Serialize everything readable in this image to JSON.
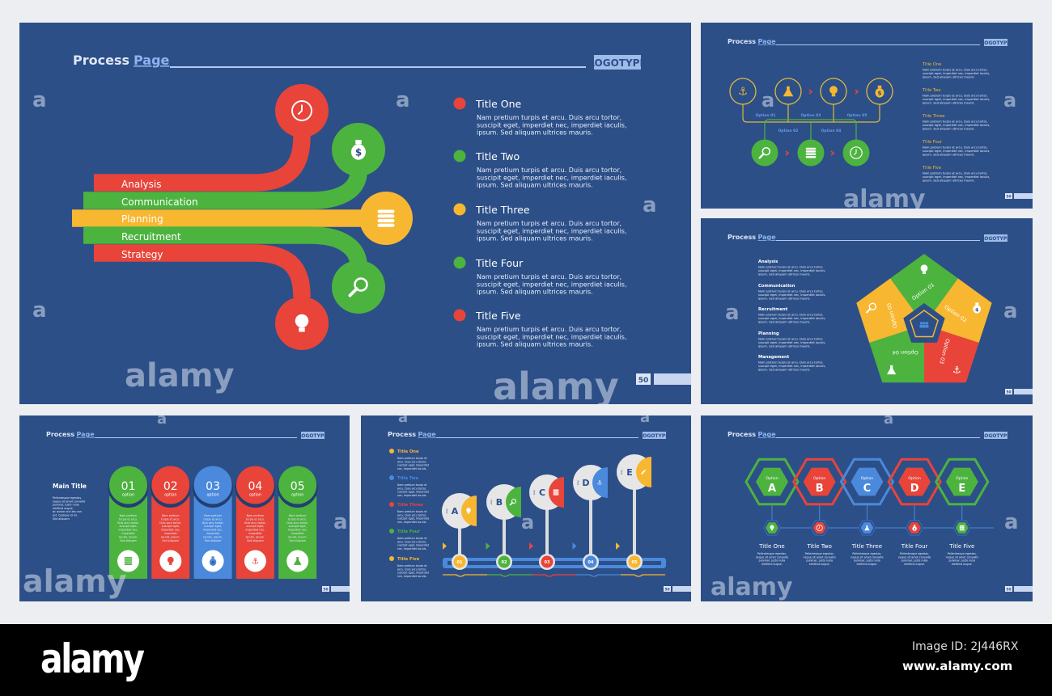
{
  "header": {
    "process": "Process",
    "page": "Page",
    "logotype": "LOGOTYPE",
    "page_number": "50"
  },
  "watermark": "alamy",
  "colors": {
    "background": "#2c4f88",
    "red": "#e8443a",
    "green": "#4cb33f",
    "yellow": "#f7b731",
    "blue": "#4a89dc",
    "light": "#e6e6e6"
  },
  "body_lines": [
    "Nam pretium turpis et arcu. Duis arcu tortor,",
    "suscipit eget, imperdiet nec, imperdiet iaculis,",
    "ipsum. Sed aliquam ultrices mauris."
  ],
  "slide1": {
    "branches": [
      {
        "label": "Analysis",
        "color": "#e8443a",
        "icon": "clock-icon"
      },
      {
        "label": "Communication",
        "color": "#4cb33f",
        "icon": "money-bag-icon"
      },
      {
        "label": "Planning",
        "color": "#f7b731",
        "icon": "coins-icon"
      },
      {
        "label": "Recruitment",
        "color": "#4cb33f",
        "icon": "search-icon"
      },
      {
        "label": "Strategy",
        "color": "#e8443a",
        "icon": "lightbulb-icon"
      }
    ],
    "items": [
      {
        "title": "Title One",
        "color": "#e8443a"
      },
      {
        "title": "Title Two",
        "color": "#4cb33f"
      },
      {
        "title": "Title Three",
        "color": "#f7b731"
      },
      {
        "title": "Title Four",
        "color": "#4cb33f"
      },
      {
        "title": "Title Five",
        "color": "#e8443a"
      }
    ]
  },
  "slide2": {
    "top_icons": [
      "anchor-icon",
      "flask-icon",
      "lightbulb-icon",
      "money-bag-icon"
    ],
    "bottom_icons": [
      "search-icon",
      "coins-icon",
      "clock-icon"
    ],
    "options": [
      "Option 01",
      "Option 02",
      "Option 03",
      "Option 04",
      "Option 05"
    ],
    "items": [
      "Title One",
      "Title Two",
      "Title Three",
      "Title Four",
      "Title Five"
    ]
  },
  "slide3": {
    "items": [
      "Analysis",
      "Communication",
      "Recruitment",
      "Planning",
      "Management"
    ],
    "segments": [
      {
        "label": "Option 01",
        "color": "#4cb33f",
        "icon": "lightbulb-icon"
      },
      {
        "label": "Option 02",
        "color": "#f7b731",
        "icon": "money-bag-icon"
      },
      {
        "label": "Option 03",
        "color": "#e8443a",
        "icon": "anchor-icon"
      },
      {
        "label": "Option 04",
        "color": "#4cb33f",
        "icon": "flask-icon"
      },
      {
        "label": "Option 05",
        "color": "#f7b731",
        "icon": "search-icon"
      }
    ],
    "center_icon": "people-icon"
  },
  "slide4": {
    "main_title": "Main Title",
    "main_text": [
      "Pellentesque egestas,",
      "neque sit amet convallis",
      "pulvinar, justo nulla",
      "eleifend augue,",
      "ac auctor orci leo non",
      "est. Quisque id mi.",
      "Sed aliquam."
    ],
    "option_label": "option",
    "column_text": [
      "Nam pretium",
      "turpis et arcu.",
      "Duis arcu tortor,",
      "suscipit eget,",
      "imperdiet nec,",
      "imperdiet",
      "iaculis, ipsum.",
      "Sed aliquam"
    ],
    "columns": [
      {
        "number": "01",
        "color": "#4cb33f",
        "icon": "coins-icon"
      },
      {
        "number": "02",
        "color": "#e8443a",
        "icon": "lightbulb-icon"
      },
      {
        "number": "03",
        "color": "#4a89dc",
        "icon": "money-bag-icon"
      },
      {
        "number": "04",
        "color": "#e8443a",
        "icon": "anchor-icon"
      },
      {
        "number": "05",
        "color": "#4cb33f",
        "icon": "flask-icon"
      }
    ]
  },
  "slide5": {
    "item_text": [
      "Nam pretium turpis et",
      "arcu. Duis arcu tortor,",
      "suscipit eget, imperdiet",
      "nec, imperdiet iaculis."
    ],
    "items": [
      {
        "title": "Title One",
        "color": "#f7b731"
      },
      {
        "title": "Title Two",
        "color": "#4a89dc"
      },
      {
        "title": "Title Three",
        "color": "#e8443a"
      },
      {
        "title": "Title Four",
        "color": "#4cb33f"
      },
      {
        "title": "Title Five",
        "color": "#f7b731"
      }
    ],
    "step_label": "step",
    "steps": [
      {
        "letter": "A",
        "number": "01",
        "color": "#f7b731",
        "icon": "lightbulb-icon"
      },
      {
        "letter": "B",
        "number": "02",
        "color": "#4cb33f",
        "icon": "search-icon"
      },
      {
        "letter": "C",
        "number": "03",
        "color": "#e8443a",
        "icon": "coins-icon"
      },
      {
        "letter": "D",
        "number": "04",
        "color": "#4a89dc",
        "icon": "anchor-icon"
      },
      {
        "letter": "E",
        "number": "05",
        "color": "#f7b731",
        "icon": "pencil-icon"
      }
    ]
  },
  "slide6": {
    "option_label": "Option",
    "item_text": [
      "Pellentesque egestas,",
      "neque sit amet convallis",
      "pulvinar, justo nulla",
      "eleifend augue."
    ],
    "hexes": [
      {
        "letter": "A",
        "title": "Title One",
        "color": "#4cb33f",
        "icon": "lightbulb-icon"
      },
      {
        "letter": "B",
        "title": "Title Two",
        "color": "#e8443a",
        "icon": "clock-icon"
      },
      {
        "letter": "C",
        "title": "Title Three",
        "color": "#4a89dc",
        "icon": "flask-icon"
      },
      {
        "letter": "D",
        "title": "Title Four",
        "color": "#e8443a",
        "icon": "money-bag-icon"
      },
      {
        "letter": "E",
        "title": "Title Five",
        "color": "#4cb33f",
        "icon": "coins-icon"
      }
    ]
  },
  "footer": {
    "logo": "alamy",
    "image_id": "Image ID: 2J446RX",
    "url": "www.alamy.com"
  }
}
